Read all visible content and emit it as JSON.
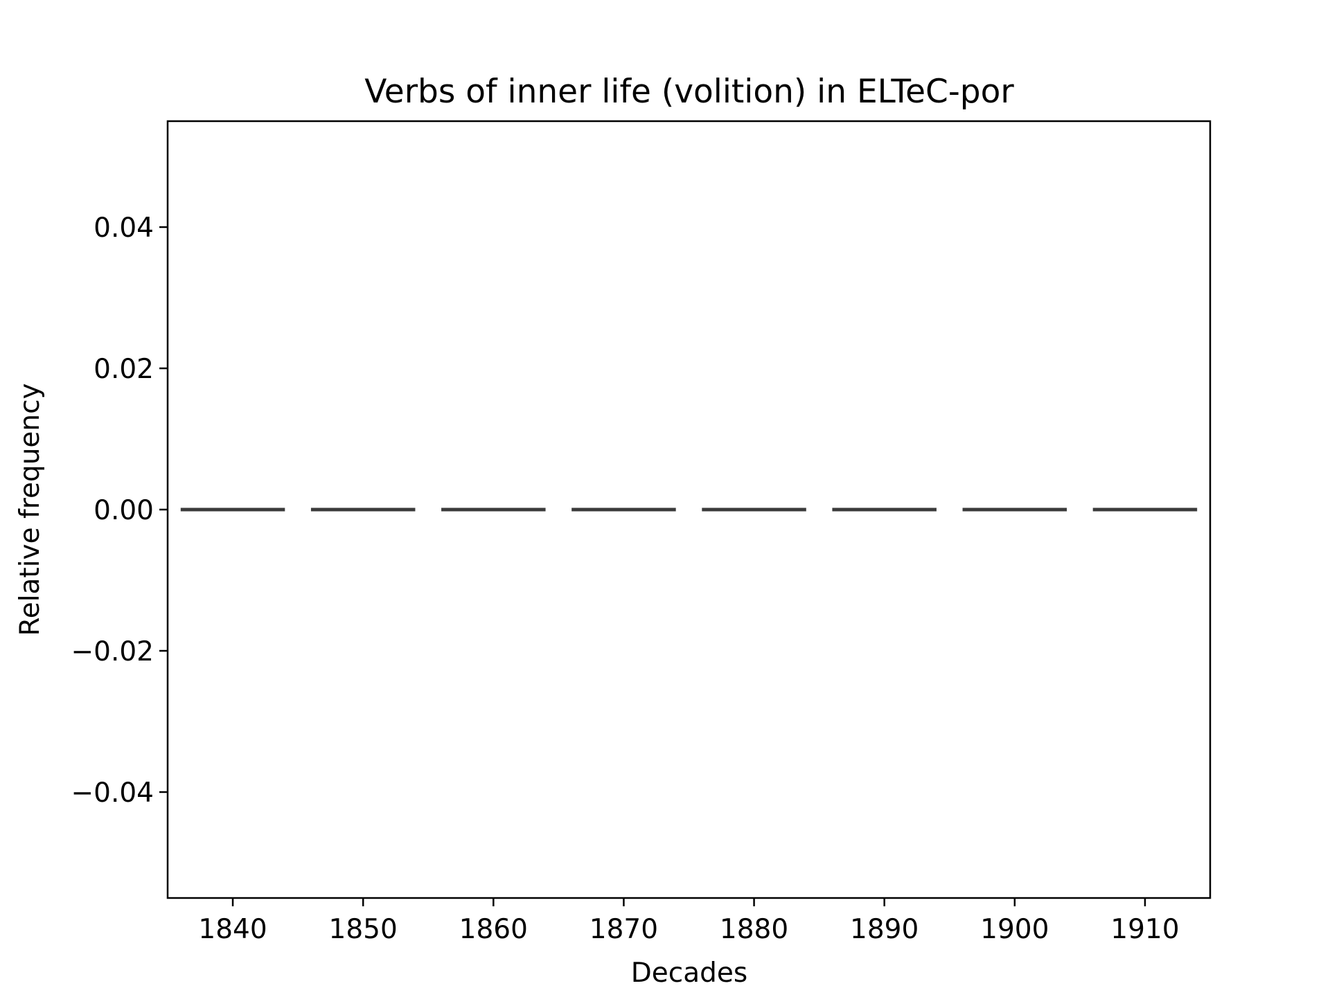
{
  "chart_data": {
    "type": "box",
    "title": "Verbs of inner life (volition) in ELTeC-por",
    "xlabel": "Decades",
    "ylabel": "Relative frequency",
    "categories": [
      "1840",
      "1850",
      "1860",
      "1870",
      "1880",
      "1890",
      "1900",
      "1910"
    ],
    "values": [
      0.0,
      0.0,
      0.0,
      0.0,
      0.0,
      0.0,
      0.0,
      0.0
    ],
    "ylim": [
      -0.055,
      0.055
    ],
    "yticks": [
      0.04,
      0.02,
      0.0,
      -0.02,
      -0.04
    ],
    "ytick_labels": [
      "0.04",
      "0.02",
      "0.00",
      "−0.02",
      "−0.04"
    ],
    "grid": false,
    "colors": {
      "median_line": "#3a3a3a",
      "axes": "#000000"
    }
  }
}
